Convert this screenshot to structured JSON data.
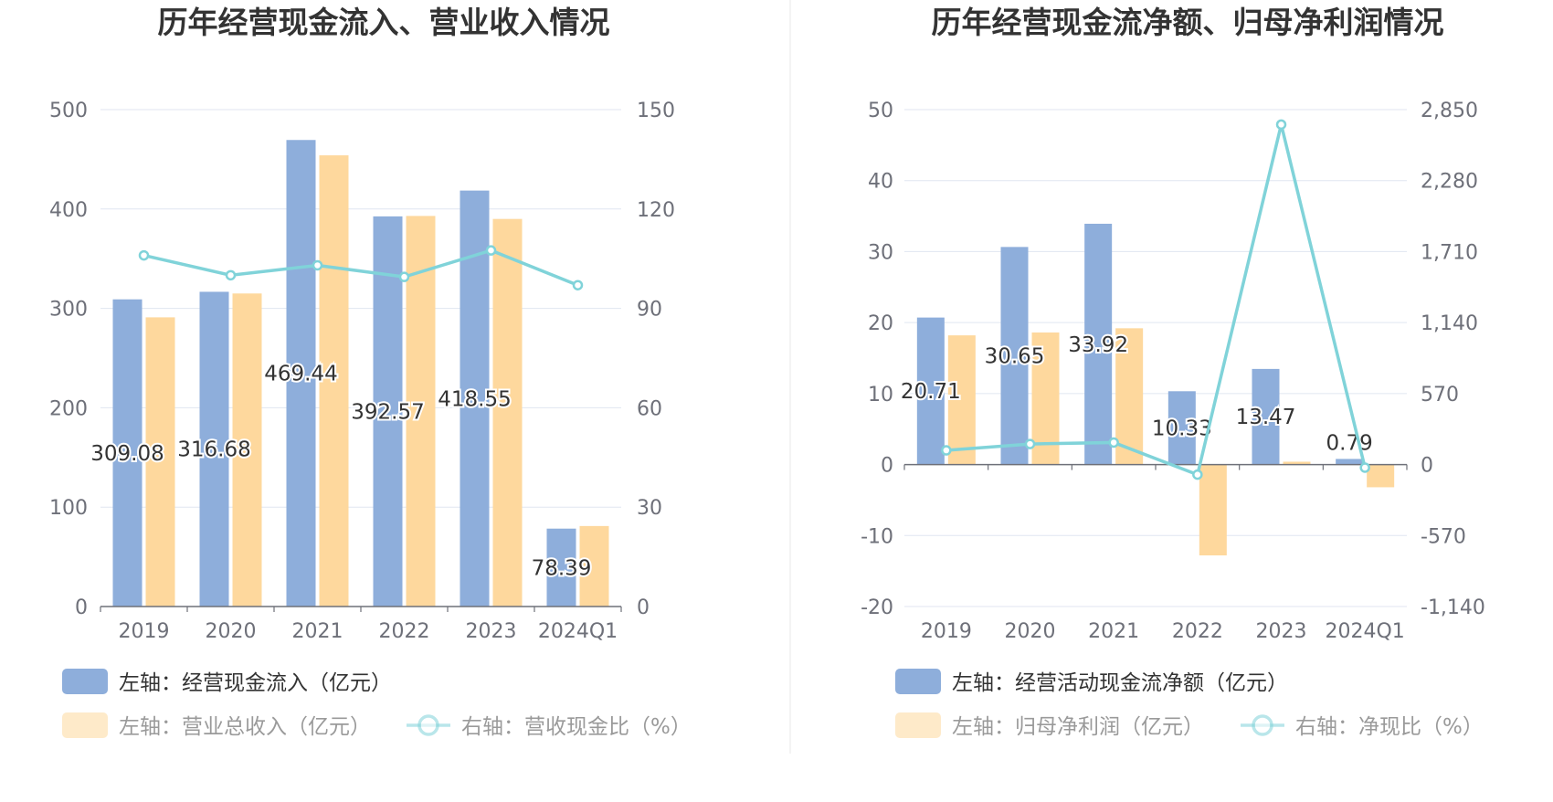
{
  "chart_data": [
    {
      "type": "bar",
      "title": "历年经营现金流入、营业收入情况",
      "categories": [
        "2019",
        "2020",
        "2021",
        "2022",
        "2023",
        "2024Q1"
      ],
      "left_axis": {
        "ylim": [
          0,
          500
        ],
        "ticks": [
          "0",
          "100",
          "200",
          "300",
          "400",
          "500"
        ]
      },
      "right_axis": {
        "ylim": [
          0,
          150
        ],
        "ticks": [
          "0",
          "30",
          "60",
          "90",
          "120",
          "150"
        ]
      },
      "series": [
        {
          "name": "左轴：经营现金流入（亿元）",
          "kind": "bar",
          "axis": "left",
          "color": "#8eaedb",
          "values": [
            309.08,
            316.68,
            469.44,
            392.57,
            418.55,
            78.39
          ],
          "labels": [
            "309.08",
            "316.68",
            "469.44",
            "392.57",
            "418.55",
            "78.39"
          ]
        },
        {
          "name": "左轴：营业总收入（亿元）",
          "kind": "bar",
          "axis": "left",
          "color": "#fed89d",
          "values": [
            291,
            315,
            454,
            393,
            390,
            81
          ]
        },
        {
          "name": "右轴：营收现金比（%）",
          "kind": "line",
          "axis": "right",
          "color": "#80d3d9",
          "values": [
            106,
            100,
            103,
            99.5,
            107.5,
            97
          ]
        }
      ],
      "grid": true,
      "legend": "bottom"
    },
    {
      "type": "bar",
      "title": "历年经营现金流净额、归母净利润情况",
      "categories": [
        "2019",
        "2020",
        "2021",
        "2022",
        "2023",
        "2024Q1"
      ],
      "left_axis": {
        "ylim": [
          -20,
          50
        ],
        "ticks": [
          "-20",
          "-10",
          "0",
          "10",
          "20",
          "30",
          "40",
          "50"
        ]
      },
      "right_axis": {
        "ylim": [
          -1140,
          2850
        ],
        "ticks": [
          "-1,140",
          "-570",
          "0",
          "570",
          "1,140",
          "1,710",
          "2,280",
          "2,850"
        ]
      },
      "series": [
        {
          "name": "左轴：经营活动现金流净额（亿元）",
          "kind": "bar",
          "axis": "left",
          "color": "#8eaedb",
          "values": [
            20.71,
            30.65,
            33.92,
            10.33,
            13.47,
            0.79
          ],
          "labels": [
            "20.71",
            "30.65",
            "33.92",
            "10.33",
            "13.47",
            "0.79"
          ]
        },
        {
          "name": "左轴：归母净利润（亿元）",
          "kind": "bar",
          "axis": "left",
          "color": "#fed89d",
          "values": [
            18.2,
            18.6,
            19.2,
            -12.8,
            0.4,
            -3.2
          ]
        },
        {
          "name": "右轴：净现比（%）",
          "kind": "line",
          "axis": "right",
          "color": "#80d3d9",
          "values": [
            114,
            165,
            177,
            -81,
            2730,
            -25
          ]
        }
      ],
      "grid": true,
      "legend": "bottom"
    }
  ]
}
